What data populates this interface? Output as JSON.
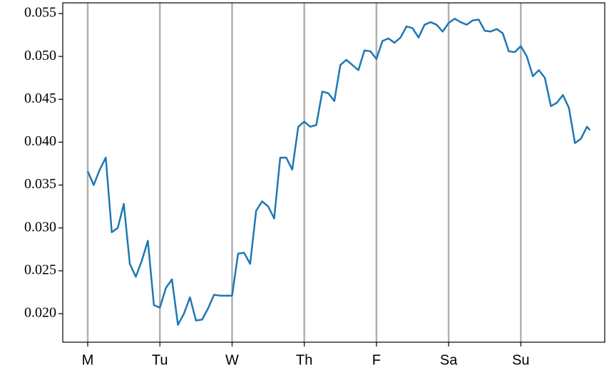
{
  "chart_data": {
    "type": "line",
    "x": [
      0,
      2,
      4,
      6,
      8,
      10,
      12,
      14,
      16,
      18,
      20,
      22,
      24,
      26,
      28,
      30,
      32,
      34,
      36,
      38,
      40,
      42,
      44,
      46,
      48,
      50,
      52,
      54,
      56,
      58,
      60,
      62,
      64,
      66,
      68,
      70,
      72,
      74,
      76,
      78,
      80,
      82,
      84,
      86,
      88,
      90,
      92,
      94,
      96,
      98,
      100,
      102,
      104,
      106,
      108,
      110,
      112,
      114,
      116,
      118,
      120,
      122,
      124,
      126,
      128,
      130,
      132,
      134,
      136,
      138,
      140,
      142,
      144,
      146,
      148,
      150,
      152,
      154,
      156,
      158,
      160,
      162,
      164,
      166,
      167
    ],
    "series": [
      {
        "color": "#1f77b4",
        "values": [
          0.0366,
          0.035,
          0.0368,
          0.0382,
          0.0295,
          0.03,
          0.0328,
          0.0258,
          0.0243,
          0.0262,
          0.0285,
          0.021,
          0.0207,
          0.023,
          0.024,
          0.0187,
          0.02,
          0.0219,
          0.0192,
          0.0193,
          0.0206,
          0.0222,
          0.0221,
          0.0221,
          0.0221,
          0.027,
          0.0271,
          0.0258,
          0.032,
          0.0331,
          0.0325,
          0.0311,
          0.0382,
          0.0382,
          0.0368,
          0.0418,
          0.0424,
          0.0418,
          0.042,
          0.0459,
          0.0457,
          0.0448,
          0.049,
          0.0496,
          0.049,
          0.0484,
          0.0507,
          0.0506,
          0.0497,
          0.0518,
          0.0521,
          0.0516,
          0.0522,
          0.0535,
          0.0533,
          0.0522,
          0.0537,
          0.054,
          0.0537,
          0.0529,
          0.0539,
          0.0544,
          0.054,
          0.0537,
          0.0542,
          0.0543,
          0.053,
          0.0529,
          0.0532,
          0.0527,
          0.0506,
          0.0505,
          0.0512,
          0.05,
          0.0477,
          0.0484,
          0.0475,
          0.0442,
          0.0446,
          0.0455,
          0.044,
          0.0399,
          0.0404,
          0.0418,
          0.0414
        ]
      }
    ],
    "xlim": [
      -8.3,
      171.9
    ],
    "xticks": [
      {
        "value": 0,
        "label": "M"
      },
      {
        "value": 24,
        "label": "Tu"
      },
      {
        "value": 48,
        "label": "W"
      },
      {
        "value": 72,
        "label": "Th"
      },
      {
        "value": 96,
        "label": "F"
      },
      {
        "value": 120,
        "label": "Sa"
      },
      {
        "value": 144,
        "label": "Su"
      }
    ],
    "ylim": [
      0.01667,
      0.05625
    ],
    "yticks": [
      {
        "value": 0.02,
        "label": "0.020"
      },
      {
        "value": 0.025,
        "label": "0.025"
      },
      {
        "value": 0.03,
        "label": "0.030"
      },
      {
        "value": 0.035,
        "label": "0.035"
      },
      {
        "value": 0.04,
        "label": "0.040"
      },
      {
        "value": 0.045,
        "label": "0.045"
      },
      {
        "value": 0.05,
        "label": "0.050"
      },
      {
        "value": 0.055,
        "label": "0.055"
      }
    ],
    "xgrid": true,
    "grid_color": "#b0b0b0"
  }
}
